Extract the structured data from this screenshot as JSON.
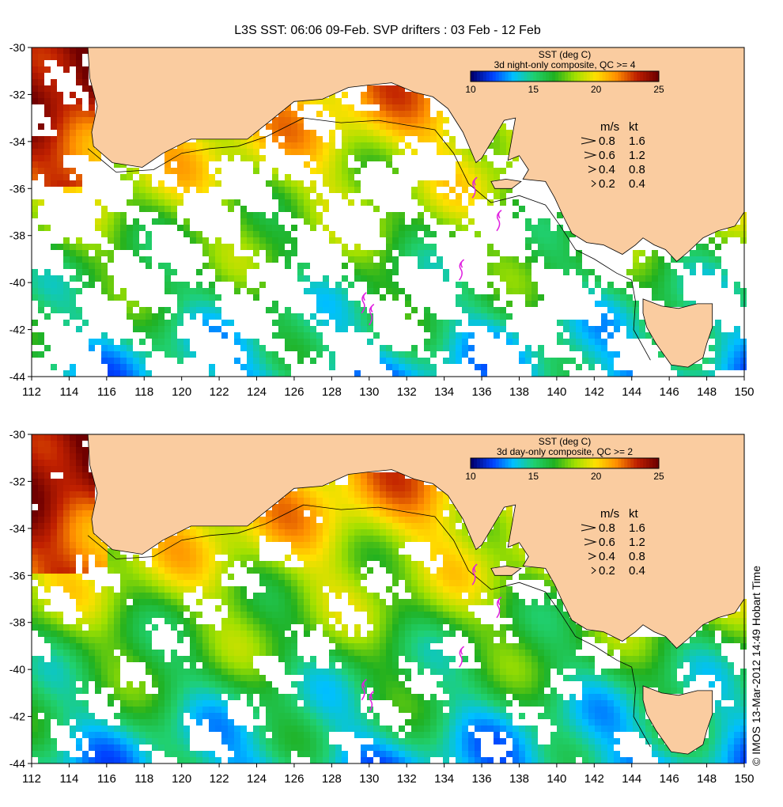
{
  "title": "L3S SST: 06:06 09-Feb. SVP drifters : 03 Feb - 12 Feb",
  "credit": "© IMOS 13-Mar-2012 14:49 Hobart Time",
  "colors": {
    "land": "#FACCA0",
    "coast": "#000000",
    "frame": "#000000"
  },
  "axes": {
    "lon_ticks": [
      "112",
      "114",
      "116",
      "118",
      "120",
      "122",
      "124",
      "126",
      "128",
      "130",
      "132",
      "134",
      "136",
      "138",
      "140",
      "142",
      "144",
      "146",
      "148",
      "150"
    ],
    "lat_ticks": [
      "-30",
      "-32",
      "-34",
      "-36",
      "-38",
      "-40",
      "-42",
      "-44"
    ]
  },
  "colorbar": {
    "title": "SST (deg C)",
    "range": [
      10,
      25
    ],
    "ticks": [
      "10",
      "15",
      "20",
      "25"
    ],
    "stops": [
      "#000070",
      "#0040ff",
      "#00c0ff",
      "#20d070",
      "#20b020",
      "#a0e000",
      "#ffe000",
      "#ff9000",
      "#c02000",
      "#700000"
    ]
  },
  "speed_legend": {
    "header_ms": "m/s",
    "header_kt": "kt",
    "rows": [
      {
        "ms": "0.8",
        "kt": "1.6"
      },
      {
        "ms": "0.6",
        "kt": "1.2"
      },
      {
        "ms": "0.4",
        "kt": "0.8"
      },
      {
        "ms": "0.2",
        "kt": "0.4"
      }
    ]
  },
  "panels": [
    {
      "id": "night",
      "subtitle": "3d night-only composite, QC >= 4",
      "coverage": 0.45
    },
    {
      "id": "day",
      "subtitle": "3d day-only composite, QC >= 2",
      "coverage": 0.72
    }
  ]
}
